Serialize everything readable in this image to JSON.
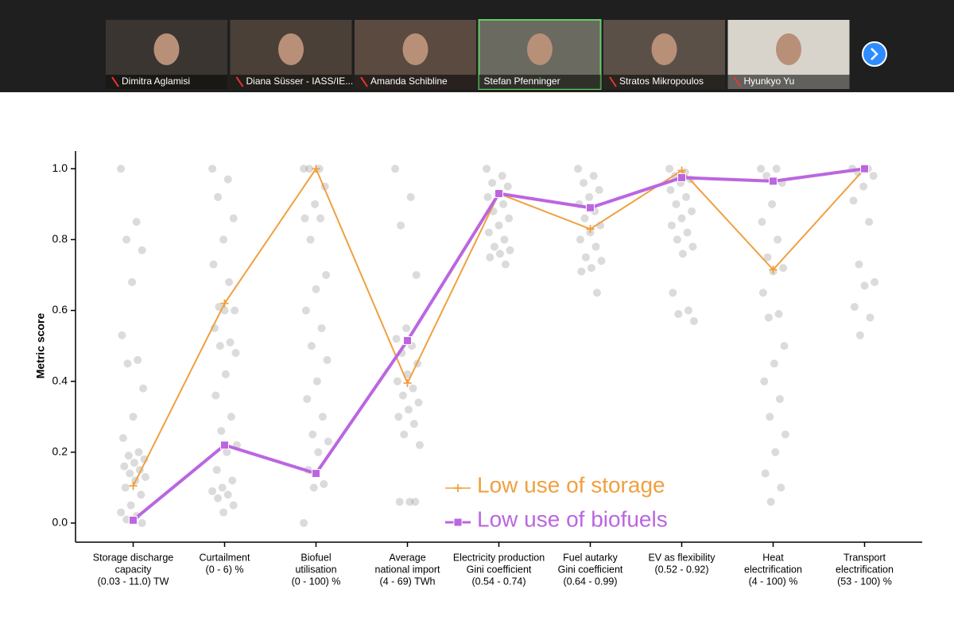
{
  "participants": [
    "Dimitra Aglamisi",
    "Diana Süsser - IASS/IE...",
    "Amanda Schibline",
    "Stefan Pfenninger",
    "Stratos Mikropoulos",
    "Hyunkyo Yu"
  ],
  "chart_data": {
    "type": "line",
    "y_label": "Metric score",
    "categories": [
      [
        "Storage discharge",
        "capacity",
        "(0.03 - 11.0) TW"
      ],
      [
        "Curtailment",
        "(0 - 6) %"
      ],
      [
        "Biofuel",
        "utilisation",
        "(0 - 100) %"
      ],
      [
        "Average",
        "national import",
        "(4 - 69) TWh"
      ],
      [
        "Electricity production",
        "Gini coefficient",
        "(0.54 - 0.74)"
      ],
      [
        "Fuel autarky",
        "Gini coefficient",
        "(0.64 - 0.99)"
      ],
      [
        "EV as flexibility",
        "(0.52 - 0.92)"
      ],
      [
        "Heat",
        "electrification",
        "(4 - 100) %"
      ],
      [
        "Transport",
        "electrification",
        "(53 - 100) %"
      ]
    ],
    "ylim": [
      -0.054,
      1.05
    ],
    "yticks": [
      {
        "value": 0,
        "label": "0.0"
      },
      0.2,
      0.4,
      0.6,
      0.8,
      {
        "value": 1,
        "label": "1.0"
      }
    ],
    "points_color": "#999999",
    "points": [
      [
        1.0,
        0.85,
        0.8,
        0.77,
        0.68,
        0.53,
        0.46,
        0.45,
        0.38,
        0.3,
        0.24,
        0.2,
        0.19,
        0.18,
        0.17,
        0.16,
        0.15,
        0.14,
        0.13,
        0.12,
        0.1,
        0.08,
        0.05,
        0.03,
        0.02,
        0.01,
        0.0
      ],
      [
        1.0,
        0.97,
        0.92,
        0.86,
        0.8,
        0.73,
        0.68,
        0.61,
        0.6,
        0.6,
        0.55,
        0.51,
        0.5,
        0.48,
        0.42,
        0.36,
        0.3,
        0.26,
        0.22,
        0.2,
        0.15,
        0.12,
        0.1,
        0.09,
        0.08,
        0.07,
        0.05,
        0.03
      ],
      [
        1.0,
        1.0,
        1.0,
        0.95,
        0.9,
        0.86,
        0.86,
        0.8,
        0.7,
        0.66,
        0.6,
        0.55,
        0.5,
        0.46,
        0.4,
        0.35,
        0.3,
        0.25,
        0.23,
        0.2,
        0.15,
        0.11,
        0.1,
        0.0
      ],
      [
        1.0,
        0.92,
        0.84,
        0.7,
        0.55,
        0.52,
        0.5,
        0.48,
        0.45,
        0.42,
        0.4,
        0.38,
        0.36,
        0.34,
        0.32,
        0.3,
        0.28,
        0.25,
        0.22,
        0.06,
        0.06,
        0.06
      ],
      [
        1.0,
        0.98,
        0.96,
        0.95,
        0.93,
        0.92,
        0.9,
        0.88,
        0.86,
        0.84,
        0.82,
        0.8,
        0.78,
        0.77,
        0.76,
        0.75,
        0.73
      ],
      [
        1.0,
        0.98,
        0.96,
        0.94,
        0.92,
        0.9,
        0.88,
        0.86,
        0.84,
        0.82,
        0.8,
        0.78,
        0.75,
        0.74,
        0.72,
        0.71,
        0.65
      ],
      [
        1.0,
        0.99,
        0.98,
        0.97,
        0.96,
        0.94,
        0.92,
        0.9,
        0.88,
        0.86,
        0.84,
        0.82,
        0.8,
        0.78,
        0.76,
        0.65,
        0.6,
        0.59,
        0.57
      ],
      [
        1.0,
        1.0,
        0.98,
        0.96,
        0.9,
        0.85,
        0.8,
        0.75,
        0.72,
        0.71,
        0.65,
        0.59,
        0.58,
        0.5,
        0.45,
        0.4,
        0.35,
        0.3,
        0.25,
        0.2,
        0.14,
        0.1,
        0.06
      ],
      [
        1.0,
        1.0,
        0.99,
        0.98,
        0.95,
        0.91,
        0.85,
        0.73,
        0.68,
        0.67,
        0.61,
        0.58,
        0.53
      ]
    ],
    "series": [
      {
        "name": "Low use of storage",
        "color": "#f0a040",
        "marker": "plus",
        "values": [
          0.105,
          0.62,
          1.0,
          0.395,
          0.93,
          0.83,
          0.995,
          0.715,
          1.0
        ]
      },
      {
        "name": "Low use of biofuels",
        "color": "#bb66e0",
        "marker": "square",
        "values": [
          0.008,
          0.22,
          0.14,
          0.515,
          0.93,
          0.89,
          0.975,
          0.965,
          1.0
        ]
      }
    ]
  }
}
